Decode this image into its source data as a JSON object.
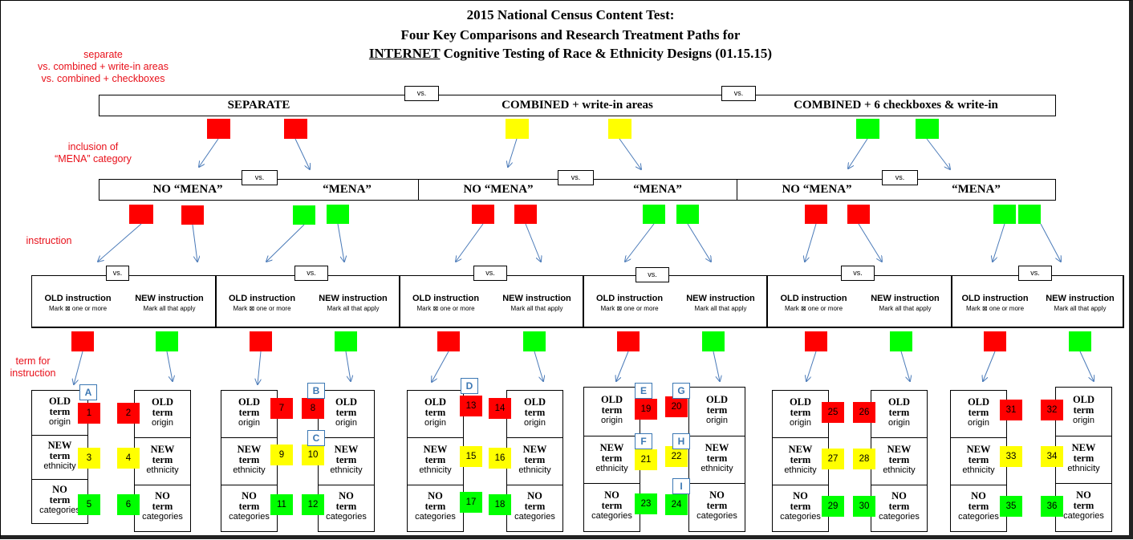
{
  "title": {
    "line1": "2015 National Census Content Test:",
    "line2": "Four Key Comparisons and Research Treatment Paths for",
    "line3_underlined": "INTERNET",
    "line3_rest": " Cognitive Testing of Race & Ethnicity Designs (01.15.15)"
  },
  "notes": {
    "comparison": [
      "separate",
      "vs. combined + write-in areas",
      "vs. combined + checkboxes"
    ],
    "mena": [
      "inclusion of",
      "“MENA” category"
    ],
    "instruction": "instruction",
    "term": [
      "term for",
      "instruction"
    ]
  },
  "vs_label": "vs.",
  "designs": [
    "SEPARATE",
    "COMBINED + write-in areas",
    "COMBINED + 6 checkboxes & write-in"
  ],
  "mena_labels": {
    "no": "NO “MENA”",
    "yes": "“MENA”"
  },
  "instruction_box": {
    "old": "OLD instruction",
    "old_sub": "Mark ⊠ one or more",
    "new": "NEW instruction",
    "new_sub": "Mark all that apply"
  },
  "terms": [
    {
      "bold": [
        "OLD",
        "term"
      ],
      "plain": "origin"
    },
    {
      "bold": [
        "NEW",
        "term"
      ],
      "plain": "ethnicity"
    },
    {
      "bold": [
        "NO",
        "term"
      ],
      "plain": "categories"
    }
  ],
  "colors": {
    "red": "#ff0000",
    "yellow": "#ffff00",
    "green": "#00ff00",
    "note_red": "#e8101a",
    "letter_blue": "#3c78b4"
  },
  "paths": [
    {
      "numbers": [
        "1",
        "2",
        "3",
        "4",
        "5",
        "6"
      ],
      "letters": [
        "A"
      ]
    },
    {
      "numbers": [
        "7",
        "8",
        "9",
        "10",
        "11",
        "12"
      ],
      "letters": [
        "B",
        "C"
      ]
    },
    {
      "numbers": [
        "13",
        "14",
        "15",
        "16",
        "17",
        "18"
      ],
      "letters": [
        "D"
      ]
    },
    {
      "numbers": [
        "19",
        "20",
        "21",
        "22",
        "23",
        "24"
      ],
      "letters": [
        "E",
        "G",
        "F",
        "H",
        "I"
      ]
    },
    {
      "numbers": [
        "25",
        "26",
        "27",
        "28",
        "29",
        "30"
      ],
      "letters": []
    },
    {
      "numbers": [
        "31",
        "32",
        "33",
        "34",
        "35",
        "36"
      ],
      "letters": []
    }
  ]
}
